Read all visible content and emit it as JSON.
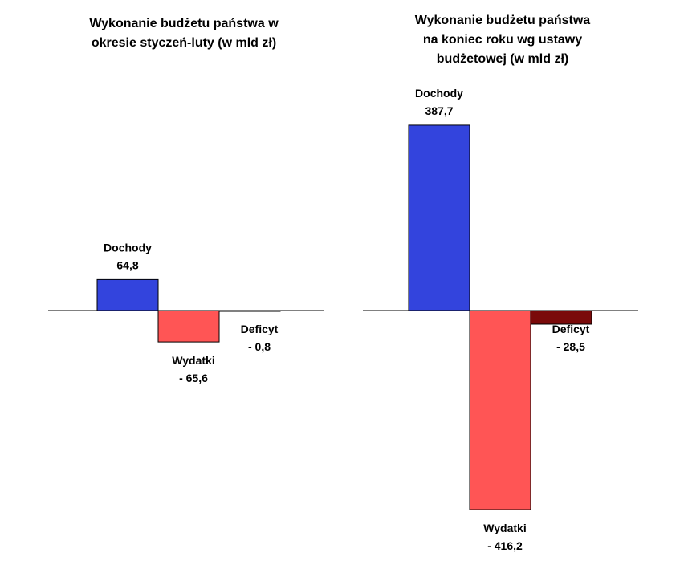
{
  "chart_data": [
    {
      "type": "bar",
      "title": [
        "Wykonanie budżetu państwa w",
        "okresie styczeń-luty (w mld zł)"
      ],
      "categories": [
        "Dochody",
        "Wydatki",
        "Deficyt"
      ],
      "values": [
        64.8,
        -65.6,
        -0.8
      ],
      "value_labels": [
        "64,8",
        "- 65,6",
        "- 0,8"
      ],
      "colors": [
        "#3344dd",
        "#ff5555",
        "#7a0a0a"
      ],
      "ylim": [
        -416.2,
        416.2
      ],
      "grid": false,
      "legend": "none"
    },
    {
      "type": "bar",
      "title": [
        "Wykonanie budżetu państwa",
        "na koniec roku wg ustawy",
        "budżetowej (w mld zł)"
      ],
      "categories": [
        "Dochody",
        "Wydatki",
        "Deficyt"
      ],
      "values": [
        387.7,
        -416.2,
        -28.5
      ],
      "value_labels": [
        "387,7",
        "- 416,2",
        "- 28,5"
      ],
      "colors": [
        "#3344dd",
        "#ff5555",
        "#7a0a0a"
      ],
      "ylim": [
        -416.2,
        416.2
      ],
      "grid": false,
      "legend": "none"
    }
  ]
}
